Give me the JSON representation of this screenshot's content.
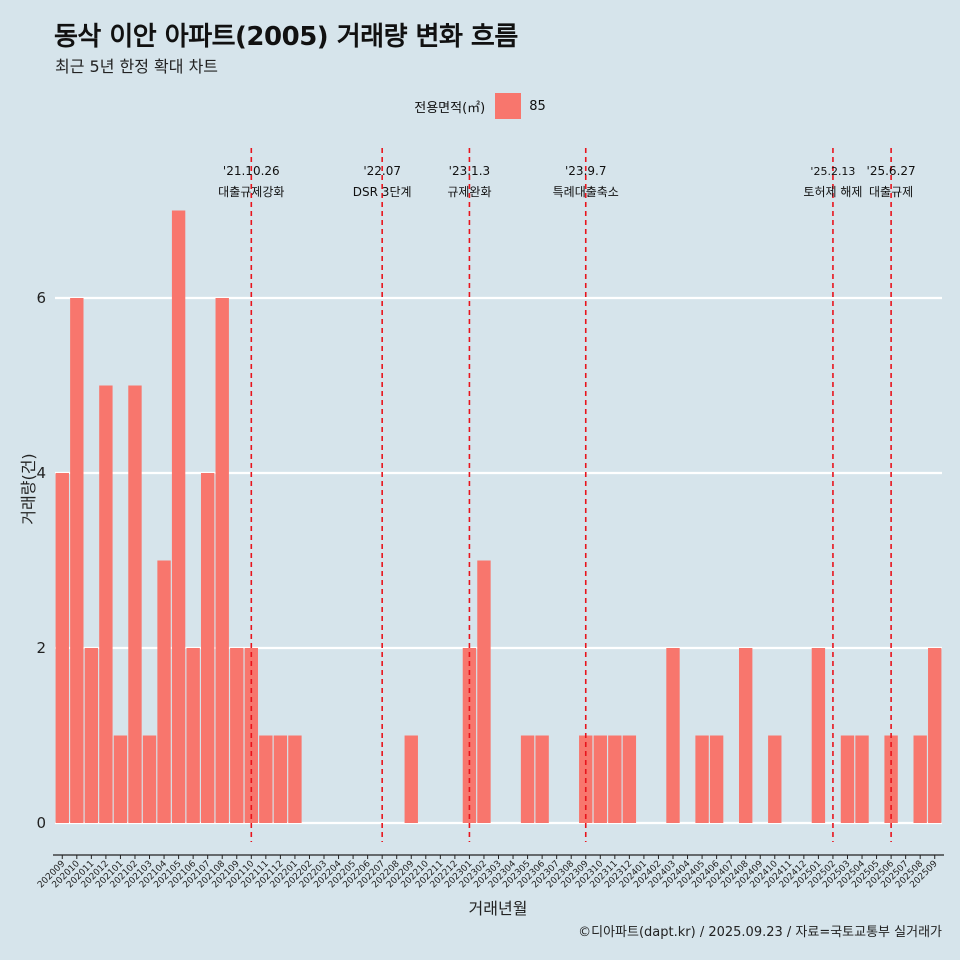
{
  "title": "동삭 이안 아파트(2005) 거래량 변화 흐름",
  "subtitle": "최근 5년 한정 확대 차트",
  "caption": "©디아파트(dapt.kr) / 2025.09.23 / 자료=국토교통부 실거래가",
  "legend": {
    "title": "전용면적(㎡)",
    "item": "85"
  },
  "colors": {
    "bar": "#f8766d",
    "background": "#d6e4eb",
    "event_line": "#e8141c"
  },
  "chart_data": {
    "type": "bar",
    "xlabel": "거래년월",
    "ylabel": "거래량(건)",
    "ylim": [
      -0.35,
      7.35
    ],
    "yticks": [
      0,
      2,
      4,
      6
    ],
    "grid": "horizontal",
    "legend_position": "top",
    "categories": [
      "202009",
      "202010",
      "202011",
      "202012",
      "202101",
      "202102",
      "202103",
      "202104",
      "202105",
      "202106",
      "202107",
      "202108",
      "202109",
      "202110",
      "202111",
      "202112",
      "202201",
      "202202",
      "202203",
      "202204",
      "202205",
      "202206",
      "202207",
      "202208",
      "202209",
      "202210",
      "202211",
      "202212",
      "202301",
      "202302",
      "202303",
      "202304",
      "202305",
      "202306",
      "202307",
      "202308",
      "202309",
      "202310",
      "202311",
      "202312",
      "202401",
      "202402",
      "202403",
      "202404",
      "202405",
      "202406",
      "202407",
      "202408",
      "202409",
      "202410",
      "202411",
      "202412",
      "202501",
      "202502",
      "202503",
      "202504",
      "202505",
      "202506",
      "202507",
      "202508",
      "202509"
    ],
    "series": [
      {
        "name": "85",
        "values": [
          4,
          6,
          2,
          5,
          1,
          5,
          1,
          3,
          7,
          2,
          4,
          6,
          2,
          2,
          1,
          1,
          1,
          0,
          0,
          0,
          0,
          0,
          0,
          0,
          1,
          0,
          0,
          0,
          2,
          3,
          0,
          0,
          1,
          1,
          0,
          0,
          1,
          1,
          1,
          1,
          0,
          0,
          2,
          0,
          1,
          1,
          0,
          2,
          0,
          1,
          0,
          0,
          2,
          0,
          1,
          1,
          0,
          1,
          0,
          1,
          2
        ]
      }
    ],
    "events": [
      {
        "date": "'21.10.26",
        "label": "대출규제강화",
        "category": "202110"
      },
      {
        "date": "'22.07",
        "label": "DSR 3단계",
        "category": "202207"
      },
      {
        "date": "'23.1.3",
        "label": "규제완화",
        "category": "202301"
      },
      {
        "date": "'23.9.7",
        "label": "특례대출축소",
        "category": "202309"
      },
      {
        "date": "'25.2.13",
        "label": "토허제 해제",
        "category": "202502"
      },
      {
        "date": "'25.6.27",
        "label": "대출규제",
        "category": "202506"
      }
    ]
  }
}
